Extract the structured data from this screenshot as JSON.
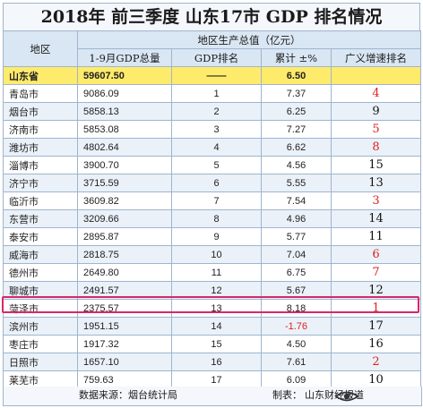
{
  "title": "2018年 前三季度 山东17市 GDP 排名情况",
  "header": {
    "region": "地区",
    "group": "地区生产总值（亿元）",
    "gdp_total": "1-9月GDP总量",
    "gdp_rank": "GDP排名",
    "growth": "累计 ±%",
    "growth_rank": "广义增速排名"
  },
  "province": {
    "region": "山东省",
    "gdp": "59607.50",
    "rank": "——",
    "growth": "6.50",
    "growth_rank": ""
  },
  "rows": [
    {
      "region": "青岛市",
      "gdp": "9086.09",
      "rank": "1",
      "growth": "7.37",
      "growth_rank": "4",
      "red": true
    },
    {
      "region": "烟台市",
      "gdp": "5858.13",
      "rank": "2",
      "growth": "6.25",
      "growth_rank": "9",
      "red": false
    },
    {
      "region": "济南市",
      "gdp": "5853.08",
      "rank": "3",
      "growth": "7.27",
      "growth_rank": "5",
      "red": true
    },
    {
      "region": "潍坊市",
      "gdp": "4802.64",
      "rank": "4",
      "growth": "6.62",
      "growth_rank": "8",
      "red": true
    },
    {
      "region": "淄博市",
      "gdp": "3900.70",
      "rank": "5",
      "growth": "4.56",
      "growth_rank": "15",
      "red": false
    },
    {
      "region": "济宁市",
      "gdp": "3715.59",
      "rank": "6",
      "growth": "5.55",
      "growth_rank": "13",
      "red": false
    },
    {
      "region": "临沂市",
      "gdp": "3609.82",
      "rank": "7",
      "growth": "7.54",
      "growth_rank": "3",
      "red": true
    },
    {
      "region": "东营市",
      "gdp": "3209.66",
      "rank": "8",
      "growth": "4.96",
      "growth_rank": "14",
      "red": false
    },
    {
      "region": "泰安市",
      "gdp": "2895.87",
      "rank": "9",
      "growth": "5.77",
      "growth_rank": "11",
      "red": false
    },
    {
      "region": "威海市",
      "gdp": "2818.75",
      "rank": "10",
      "growth": "7.04",
      "growth_rank": "6",
      "red": true
    },
    {
      "region": "德州市",
      "gdp": "2649.80",
      "rank": "11",
      "growth": "6.75",
      "growth_rank": "7",
      "red": true
    },
    {
      "region": "聊城市",
      "gdp": "2491.57",
      "rank": "12",
      "growth": "5.67",
      "growth_rank": "12",
      "red": false
    },
    {
      "region": "菏泽市",
      "gdp": "2375.57",
      "rank": "13",
      "growth": "8.18",
      "growth_rank": "1",
      "red": true,
      "highlight": true
    },
    {
      "region": "滨州市",
      "gdp": "1951.15",
      "rank": "14",
      "growth": "-1.76",
      "growth_rank": "17",
      "red": false,
      "neg": true
    },
    {
      "region": "枣庄市",
      "gdp": "1917.32",
      "rank": "15",
      "growth": "4.50",
      "growth_rank": "16",
      "red": false
    },
    {
      "region": "日照市",
      "gdp": "1657.10",
      "rank": "16",
      "growth": "7.61",
      "growth_rank": "2",
      "red": true
    },
    {
      "region": "莱芜市",
      "gdp": "759.63",
      "rank": "17",
      "growth": "6.09",
      "growth_rank": "10",
      "red": false
    }
  ],
  "footer": {
    "source": "数据来源：烟台统计局",
    "author": "制表： 山东财经报道"
  },
  "colors": {
    "province_row": "#ffeb6b",
    "header_bg": "#d9e6f3",
    "alt_row": "#eaf1f8",
    "rank_red": "#e02020",
    "highlight_border": "#d6286b"
  }
}
